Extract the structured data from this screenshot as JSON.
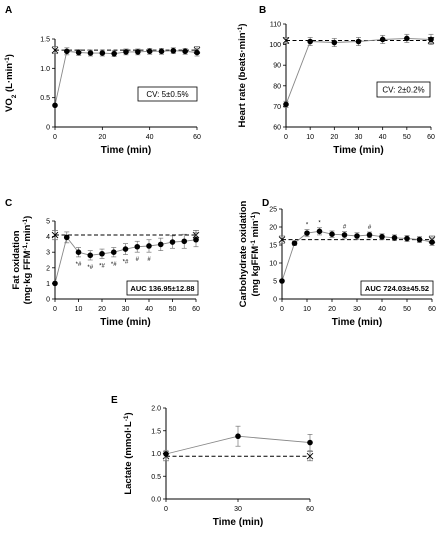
{
  "chart_data": [
    {
      "panel": "A",
      "type": "line",
      "xlabel": "Time (min)",
      "ylabel": "VO2 (L·min-1)",
      "ylabel_parts": {
        "pre": "VO",
        "sub": "2",
        "mid": " (L",
        "sep": "·",
        "unit": "min",
        "sup": "-1",
        "post": ")"
      },
      "xlim": [
        0,
        60
      ],
      "ylim": [
        0,
        1.5
      ],
      "xticks": [
        0,
        20,
        40,
        60
      ],
      "yticks": [
        0,
        0.5,
        1.0,
        1.5
      ],
      "ytick_labels": [
        "0",
        "0.5",
        "1.0",
        "1.5"
      ],
      "x": [
        0,
        5,
        10,
        15,
        20,
        25,
        30,
        35,
        40,
        45,
        50,
        55,
        60
      ],
      "values": [
        0.37,
        1.29,
        1.27,
        1.26,
        1.26,
        1.25,
        1.28,
        1.28,
        1.29,
        1.29,
        1.3,
        1.29,
        1.27
      ],
      "errors": [
        0.01,
        0.06,
        0.05,
        0.05,
        0.05,
        0.05,
        0.05,
        0.05,
        0.05,
        0.05,
        0.05,
        0.05,
        0.06
      ],
      "reference": {
        "x": [
          0,
          60
        ],
        "value": 1.31,
        "errors": [
          0.06,
          0.06
        ]
      },
      "annotation": "CV: 5±0.5%",
      "grid": false
    },
    {
      "panel": "B",
      "type": "line",
      "xlabel": "Time (min)",
      "ylabel": "Heart rate (beats·min-1)",
      "ylabel_parts": {
        "pre": "Heart rate (beats",
        "sep": "·",
        "unit": "min",
        "sup": "-1",
        "post": ")"
      },
      "xlim": [
        0,
        60
      ],
      "ylim": [
        60,
        110
      ],
      "xticks": [
        0,
        10,
        20,
        30,
        40,
        50,
        60
      ],
      "yticks": [
        60,
        70,
        80,
        90,
        100,
        110
      ],
      "ytick_labels": [
        "60",
        "70",
        "80",
        "90",
        "100",
        "110"
      ],
      "x": [
        0,
        10,
        20,
        30,
        40,
        50,
        60
      ],
      "values": [
        71,
        101.5,
        101,
        101.5,
        102.5,
        103,
        102.5
      ],
      "errors": [
        1.5,
        2,
        2,
        2,
        2,
        2,
        2.5
      ],
      "reference": {
        "x": [
          0,
          60
        ],
        "value": 102,
        "errors": [
          1.5,
          1.5
        ]
      },
      "annotation": "CV: 2±0.2%",
      "grid": false
    },
    {
      "panel": "C",
      "type": "line",
      "xlabel": "Time (min)",
      "ylabel": "Fat oxidation (mg·kg FFM-1·min-1)",
      "ylabel_line1": "Fat oxidation",
      "ylabel_parts": {
        "pre": "(mg",
        "sep": "·",
        "unit": "kg FFM",
        "sup": "-1",
        "sep2": "·",
        "unit2": "min",
        "sup2": "-1",
        "post": ")"
      },
      "xlim": [
        0,
        60
      ],
      "ylim": [
        0,
        5
      ],
      "xticks": [
        0,
        10,
        20,
        30,
        40,
        50,
        60
      ],
      "yticks": [
        0,
        1,
        2,
        3,
        4,
        5
      ],
      "ytick_labels": [
        "0",
        "1",
        "2",
        "3",
        "4",
        "5"
      ],
      "x": [
        0,
        5,
        10,
        15,
        20,
        25,
        30,
        35,
        40,
        45,
        50,
        55,
        60
      ],
      "values": [
        1.0,
        3.95,
        3.0,
        2.8,
        2.9,
        3.0,
        3.2,
        3.35,
        3.4,
        3.5,
        3.65,
        3.7,
        3.8
      ],
      "errors": [
        0.05,
        0.35,
        0.3,
        0.3,
        0.3,
        0.3,
        0.35,
        0.35,
        0.4,
        0.4,
        0.4,
        0.45,
        0.45
      ],
      "reference": {
        "x": [
          0,
          60
        ],
        "value": 4.1,
        "errors": [
          0.3,
          0.3
        ]
      },
      "significance": [
        {
          "x": 10,
          "label": "*#"
        },
        {
          "x": 15,
          "label": "*#"
        },
        {
          "x": 20,
          "label": "*#"
        },
        {
          "x": 25,
          "label": "*#"
        },
        {
          "x": 30,
          "label": "*#"
        },
        {
          "x": 35,
          "label": "#"
        },
        {
          "x": 40,
          "label": "#"
        }
      ],
      "annotation": "AUC 136.95±12.88",
      "grid": false
    },
    {
      "panel": "D",
      "type": "line",
      "xlabel": "Time (min)",
      "ylabel": "Carbohydrate oxidation (mg kgFFM-1 min-1)",
      "ylabel_line1": "Carbohydrate oxidation",
      "ylabel_parts": {
        "pre": "(mg kgFFM",
        "sup": "-1",
        "mid": " min",
        "sup2": "-1",
        "post": ")"
      },
      "xlim": [
        0,
        60
      ],
      "ylim": [
        0,
        25
      ],
      "xticks": [
        0,
        10,
        20,
        30,
        40,
        50,
        60
      ],
      "yticks": [
        0,
        5,
        10,
        15,
        20,
        25
      ],
      "ytick_labels": [
        "0",
        "5",
        "10",
        "15",
        "20",
        "25"
      ],
      "x": [
        0,
        5,
        10,
        15,
        20,
        25,
        30,
        35,
        40,
        45,
        50,
        55,
        60
      ],
      "values": [
        5,
        15.5,
        18.3,
        18.8,
        18,
        17.8,
        17.5,
        17.8,
        17.3,
        17,
        16.8,
        16.5,
        15.8
      ],
      "errors": [
        0.2,
        0.6,
        1,
        1,
        0.9,
        0.9,
        0.9,
        0.8,
        0.8,
        0.8,
        0.8,
        0.8,
        0.9
      ],
      "reference": {
        "x": [
          0,
          60
        ],
        "value": 16.5,
        "errors": [
          1,
          1
        ]
      },
      "significance": [
        {
          "x": 10,
          "label": "*"
        },
        {
          "x": 15,
          "label": "*"
        },
        {
          "x": 25,
          "label": "#"
        },
        {
          "x": 35,
          "label": "#"
        }
      ],
      "annotation": "AUC 724.03±45.52",
      "grid": false
    },
    {
      "panel": "E",
      "type": "line",
      "xlabel": "Time (min)",
      "ylabel": "Lactate (mmol·L-1)",
      "ylabel_parts": {
        "pre": "Lactate (mmol",
        "sep": "·",
        "unit": "L",
        "sup": "-1",
        "post": ")"
      },
      "xlim": [
        0,
        60
      ],
      "ylim": [
        0,
        2.0
      ],
      "xticks": [
        0,
        30,
        60
      ],
      "yticks": [
        0,
        0.5,
        1.0,
        1.5,
        2.0
      ],
      "ytick_labels": [
        "0.0",
        "0.5",
        "1.0",
        "1.5",
        "2.0"
      ],
      "x": [
        0,
        30,
        60
      ],
      "values": [
        0.99,
        1.38,
        1.24
      ],
      "errors": [
        0.08,
        0.22,
        0.18
      ],
      "reference": {
        "x": [
          0,
          60
        ],
        "value": 0.94,
        "errors": [
          0.1,
          0.1
        ]
      },
      "grid": false
    }
  ]
}
